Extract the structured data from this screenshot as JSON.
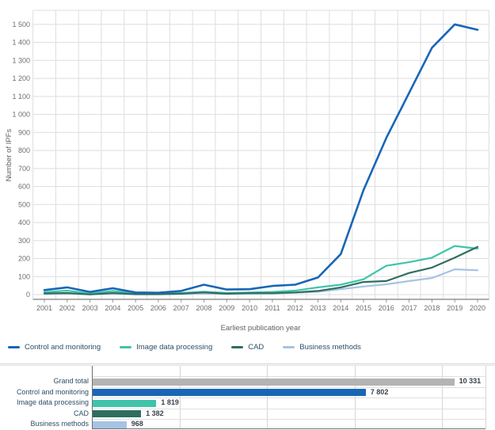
{
  "colors": {
    "grid": "#dedede",
    "axis": "#7d7d7d",
    "tick_mark": "#9a9a9a",
    "tick_text": "#6e6e6e",
    "axis_title_text": "#5f5f5f",
    "category_text": "#2d4e66",
    "value_text": "#39424c",
    "divider": "#d2d2d2"
  },
  "chart_data": [
    {
      "type": "line",
      "title": "",
      "xlabel": "Earliest publication year",
      "ylabel": "Number of IPFs",
      "x": [
        2001,
        2002,
        2003,
        2004,
        2005,
        2006,
        2007,
        2008,
        2009,
        2010,
        2011,
        2012,
        2013,
        2014,
        2015,
        2016,
        2017,
        2018,
        2019,
        2020
      ],
      "ylim": [
        0,
        1500
      ],
      "ytick_step": 100,
      "grid": true,
      "legend_position": "bottom",
      "series": [
        {
          "name": "Control and monitoring",
          "color": "#1966b5",
          "width": 2.6,
          "values": [
            25,
            40,
            15,
            35,
            12,
            10,
            20,
            55,
            28,
            30,
            48,
            55,
            95,
            225,
            580,
            870,
            1120,
            1370,
            1500,
            1470
          ]
        },
        {
          "name": "Image data processing",
          "color": "#3fc4aa",
          "width": 2.2,
          "values": [
            13,
            22,
            6,
            20,
            6,
            5,
            9,
            16,
            9,
            12,
            15,
            22,
            40,
            55,
            85,
            160,
            180,
            205,
            270,
            255
          ]
        },
        {
          "name": "CAD",
          "color": "#2f6e5f",
          "width": 2.2,
          "values": [
            6,
            9,
            1,
            9,
            2,
            2,
            5,
            12,
            5,
            8,
            8,
            12,
            20,
            40,
            70,
            75,
            120,
            150,
            205,
            265
          ]
        },
        {
          "name": "Business methods",
          "color": "#a6c3e3",
          "width": 2.2,
          "values": [
            4,
            5,
            2,
            4,
            2,
            2,
            4,
            6,
            5,
            5,
            6,
            10,
            16,
            30,
            45,
            57,
            75,
            92,
            140,
            135
          ]
        }
      ]
    },
    {
      "type": "bar",
      "orientation": "horizontal",
      "categories": [
        "Grand total",
        "Control and monitoring",
        "Image data processing",
        "CAD",
        "Business methods"
      ],
      "values": [
        10331,
        7802,
        1819,
        1382,
        968
      ],
      "value_labels": [
        "10 331",
        "7 802",
        "1 819",
        "1 382",
        "968"
      ],
      "colors": [
        "#b4b4b4",
        "#1966b5",
        "#3fc4aa",
        "#2f6e5f",
        "#a6c3e3"
      ],
      "xlim": [
        0,
        11250
      ],
      "grid_step": 2500,
      "grid": true
    }
  ]
}
